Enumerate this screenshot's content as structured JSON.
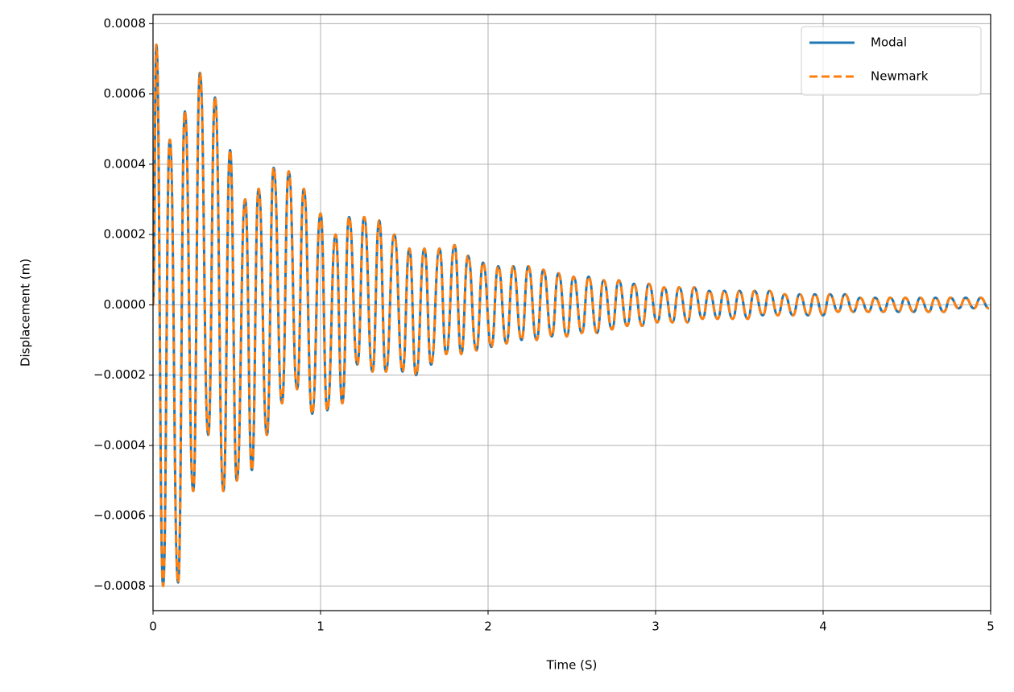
{
  "chart_data": {
    "type": "line",
    "xlabel": "Time (S)",
    "ylabel": "Displacement (m)",
    "x": [
      0,
      0.02,
      0.06,
      0.1,
      0.15,
      0.19,
      0.24,
      0.28,
      0.33,
      0.37,
      0.42,
      0.46,
      0.5,
      0.55,
      0.59,
      0.63,
      0.68,
      0.72,
      0.77,
      0.81,
      0.86,
      0.9,
      0.95,
      1.0,
      1.04,
      1.09,
      1.13,
      1.17,
      1.22,
      1.26,
      1.31,
      1.35,
      1.39,
      1.44,
      1.49,
      1.53,
      1.57,
      1.62,
      1.66,
      1.71,
      1.75,
      1.8,
      1.84,
      1.88,
      1.93,
      1.97,
      2.02,
      2.06,
      2.11,
      2.15,
      2.2,
      2.24,
      2.29,
      2.33,
      2.38,
      2.42,
      2.47,
      2.51,
      2.56,
      2.6,
      2.65,
      2.69,
      2.74,
      2.78,
      2.83,
      2.87,
      2.92,
      2.96,
      3.01,
      3.05,
      3.1,
      3.14,
      3.19,
      3.23,
      3.28,
      3.32,
      3.37,
      3.41,
      3.46,
      3.5,
      3.55,
      3.59,
      3.64,
      3.68,
      3.73,
      3.77,
      3.82,
      3.86,
      3.91,
      3.95,
      4.0,
      4.04,
      4.09,
      4.13,
      4.18,
      4.22,
      4.27,
      4.31,
      4.36,
      4.4,
      4.45,
      4.49,
      4.54,
      4.58,
      4.63,
      4.67,
      4.72,
      4.76,
      4.81,
      4.85,
      4.9,
      4.94,
      4.99
    ],
    "series": [
      {
        "name": "Modal",
        "color": "#1f77b4",
        "linestyle": "solid",
        "values": [
          0,
          0.00074,
          -0.0008,
          0.00047,
          -0.00079,
          0.00055,
          -0.00053,
          0.00066,
          -0.00037,
          0.00059,
          -0.00053,
          0.00044,
          -0.0005,
          0.0003,
          -0.00047,
          0.00033,
          -0.00037,
          0.00039,
          -0.00028,
          0.00038,
          -0.00024,
          0.00033,
          -0.00031,
          0.00026,
          -0.0003,
          0.0002,
          -0.00028,
          0.00025,
          -0.00017,
          0.00025,
          -0.00019,
          0.00024,
          -0.00019,
          0.0002,
          -0.00019,
          0.00016,
          -0.0002,
          0.00016,
          -0.00017,
          0.00016,
          -0.00014,
          0.00017,
          -0.00014,
          0.00014,
          -0.00013,
          0.00012,
          -0.00012,
          0.00011,
          -0.00011,
          0.00011,
          -0.0001,
          0.00011,
          -0.0001,
          0.0001,
          -9e-05,
          9e-05,
          -9e-05,
          8e-05,
          -8e-05,
          8e-05,
          -8e-05,
          7e-05,
          -7e-05,
          7e-05,
          -6e-05,
          6e-05,
          -6e-05,
          6e-05,
          -5e-05,
          5e-05,
          -5e-05,
          5e-05,
          -5e-05,
          5e-05,
          -4e-05,
          4e-05,
          -4e-05,
          4e-05,
          -4e-05,
          4e-05,
          -4e-05,
          4e-05,
          -3e-05,
          4e-05,
          -3e-05,
          3e-05,
          -3e-05,
          3e-05,
          -3e-05,
          3e-05,
          -3e-05,
          3e-05,
          -2e-05,
          3e-05,
          -2e-05,
          2e-05,
          -2e-05,
          2e-05,
          -2e-05,
          2e-05,
          -2e-05,
          2e-05,
          -2e-05,
          2e-05,
          -2e-05,
          2e-05,
          -2e-05,
          2e-05,
          -1e-05,
          2e-05,
          -1e-05,
          2e-05,
          -1e-05
        ]
      },
      {
        "name": "Newmark",
        "color": "#ff7f0e",
        "linestyle": "dashed",
        "values": [
          0,
          0.00074,
          -0.0008,
          0.00047,
          -0.00079,
          0.00055,
          -0.00053,
          0.00066,
          -0.00037,
          0.00059,
          -0.00053,
          0.00044,
          -0.0005,
          0.0003,
          -0.00047,
          0.00033,
          -0.00037,
          0.00039,
          -0.00028,
          0.00038,
          -0.00024,
          0.00033,
          -0.00031,
          0.00026,
          -0.0003,
          0.0002,
          -0.00028,
          0.00025,
          -0.00017,
          0.00025,
          -0.00019,
          0.00024,
          -0.00019,
          0.0002,
          -0.00019,
          0.00016,
          -0.0002,
          0.00016,
          -0.00017,
          0.00016,
          -0.00014,
          0.00017,
          -0.00014,
          0.00014,
          -0.00013,
          0.00012,
          -0.00012,
          0.00011,
          -0.00011,
          0.00011,
          -0.0001,
          0.00011,
          -0.0001,
          0.0001,
          -9e-05,
          9e-05,
          -9e-05,
          8e-05,
          -8e-05,
          8e-05,
          -8e-05,
          7e-05,
          -7e-05,
          7e-05,
          -6e-05,
          6e-05,
          -6e-05,
          6e-05,
          -5e-05,
          5e-05,
          -5e-05,
          5e-05,
          -5e-05,
          5e-05,
          -4e-05,
          4e-05,
          -4e-05,
          4e-05,
          -4e-05,
          4e-05,
          -4e-05,
          4e-05,
          -3e-05,
          4e-05,
          -3e-05,
          3e-05,
          -3e-05,
          3e-05,
          -3e-05,
          3e-05,
          -3e-05,
          3e-05,
          -2e-05,
          3e-05,
          -2e-05,
          2e-05,
          -2e-05,
          2e-05,
          -2e-05,
          2e-05,
          -2e-05,
          2e-05,
          -2e-05,
          2e-05,
          -2e-05,
          2e-05,
          -2e-05,
          2e-05,
          -1e-05,
          2e-05,
          -1e-05,
          2e-05,
          -1e-05
        ]
      }
    ],
    "xlim": [
      0,
      5
    ],
    "xticks": [
      0,
      1,
      2,
      3,
      4,
      5
    ],
    "ylim": [
      -0.00087,
      0.000826
    ],
    "yticks": [
      {
        "value": -0.0008,
        "label": "−0.0008"
      },
      {
        "value": -0.0006,
        "label": "−0.0006"
      },
      {
        "value": -0.0004,
        "label": "−0.0004"
      },
      {
        "value": -0.0002,
        "label": "−0.0002"
      },
      {
        "value": 0,
        "label": "0.0000"
      },
      {
        "value": 0.0002,
        "label": "0.0002"
      },
      {
        "value": 0.0004,
        "label": "0.0004"
      },
      {
        "value": 0.0006,
        "label": "0.0006"
      },
      {
        "value": 0.0008,
        "label": "0.0008"
      }
    ],
    "grid": true,
    "legend": "upper right"
  }
}
